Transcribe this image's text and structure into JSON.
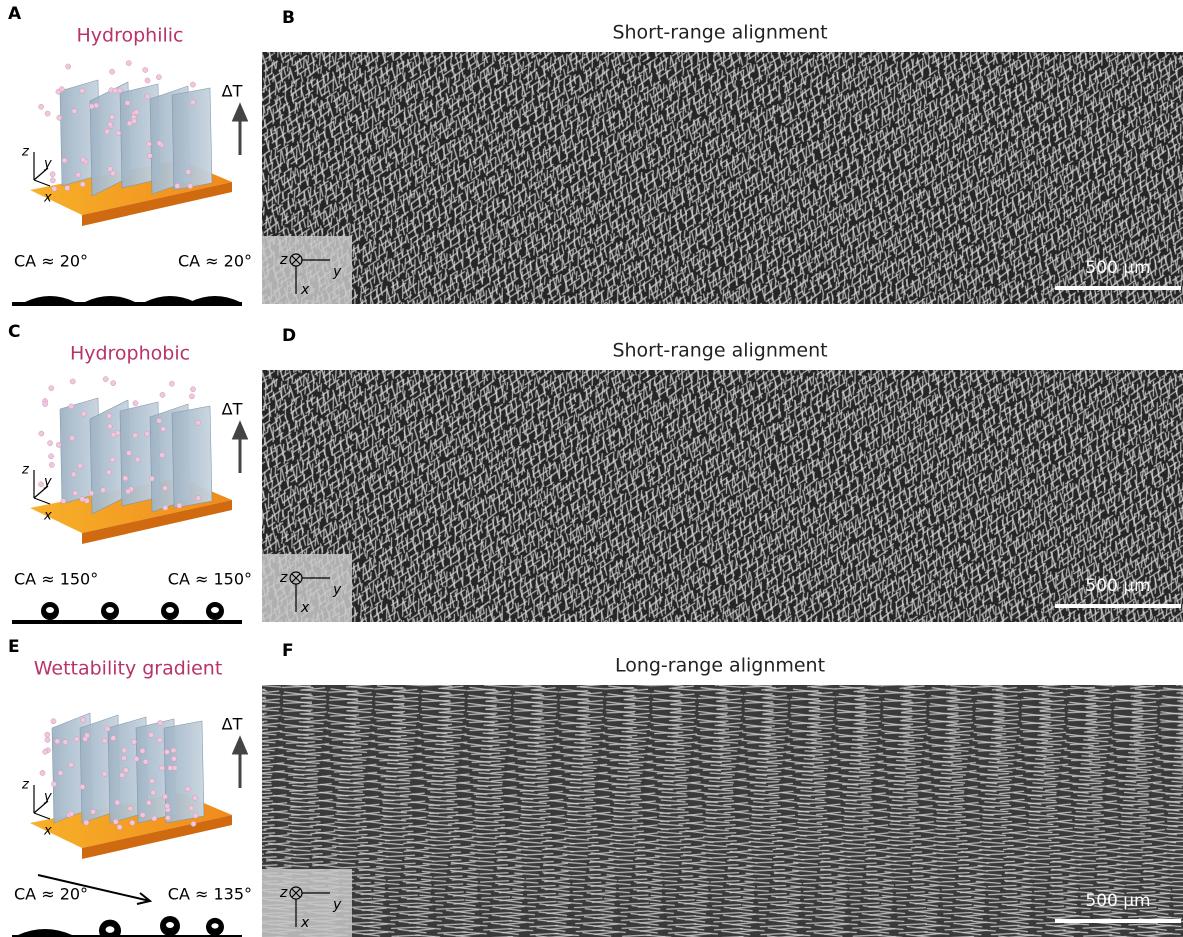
{
  "rows": [
    {
      "left": {
        "letter": "A",
        "title": "Hydrophilic",
        "delta_t": "ΔT",
        "axis_z": "z",
        "axis_y": "y",
        "axis_x": "x",
        "ca_left": "CA ≈ 20°",
        "ca_right": "CA ≈ 20°"
      },
      "right": {
        "letter": "B",
        "title": "Short-range alignment",
        "inset_z": "z",
        "inset_y": "y",
        "inset_x": "x",
        "scale_bar": "500 μm"
      }
    },
    {
      "left": {
        "letter": "C",
        "title": "Hydrophobic",
        "delta_t": "ΔT",
        "axis_z": "z",
        "axis_y": "y",
        "axis_x": "x",
        "ca_left": "CA ≈ 150°",
        "ca_right": "CA ≈ 150°"
      },
      "right": {
        "letter": "D",
        "title": "Short-range alignment",
        "inset_z": "z",
        "inset_y": "y",
        "inset_x": "x",
        "scale_bar": "500 μm"
      }
    },
    {
      "left": {
        "letter": "E",
        "title": "Wettability gradient",
        "delta_t": "ΔT",
        "axis_z": "z",
        "axis_y": "y",
        "axis_x": "x",
        "ca_left": "CA ≈ 20°",
        "ca_right": "CA ≈ 135°"
      },
      "right": {
        "letter": "F",
        "title": "Long-range alignment",
        "inset_z": "z",
        "inset_y": "y",
        "inset_x": "x",
        "scale_bar": "500 μm"
      }
    }
  ]
}
